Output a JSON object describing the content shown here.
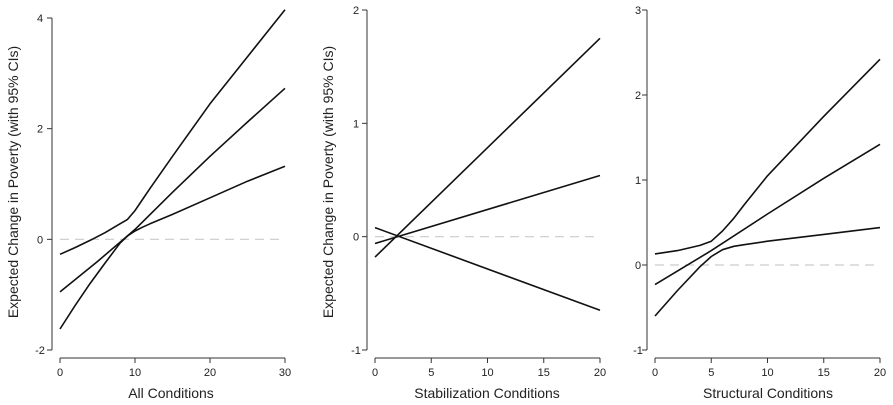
{
  "colors": {
    "line": "#111111",
    "reference": "#cccccc",
    "axis": "#333333"
  },
  "chart_data": [
    {
      "type": "line",
      "xlabel": "All Conditions",
      "ylabel": "Expected Change in Poverty (with 95% CIs)",
      "xlim": [
        0,
        30
      ],
      "ylim": [
        -2,
        4
      ],
      "xticks": [
        0,
        10,
        20,
        30
      ],
      "yticks": [
        -2,
        0,
        2,
        4
      ],
      "reference_y": 0,
      "series": [
        {
          "x": [
            0,
            2,
            4,
            6,
            8,
            9,
            10,
            11,
            12,
            15,
            20,
            25,
            30
          ],
          "y": [
            -0.27,
            -0.15,
            -0.02,
            0.12,
            0.28,
            0.36,
            0.52,
            0.72,
            0.92,
            1.5,
            2.45,
            3.3,
            4.15
          ]
        },
        {
          "x": [
            0,
            5,
            10,
            15,
            20,
            25,
            30
          ],
          "y": [
            -0.95,
            -0.4,
            0.18,
            0.85,
            1.5,
            2.12,
            2.73
          ]
        },
        {
          "x": [
            0,
            2,
            4,
            6,
            8,
            9,
            10,
            11,
            12,
            15,
            20,
            25,
            30
          ],
          "y": [
            -1.62,
            -1.2,
            -0.8,
            -0.43,
            -0.07,
            0.06,
            0.15,
            0.22,
            0.28,
            0.45,
            0.75,
            1.05,
            1.32
          ]
        }
      ]
    },
    {
      "type": "line",
      "xlabel": "Stabilization Conditions",
      "ylabel": "Expected Change in Poverty (with 95% CIs)",
      "xlim": [
        0,
        20
      ],
      "ylim": [
        -1,
        2
      ],
      "xticks": [
        0,
        5,
        10,
        15,
        20
      ],
      "yticks": [
        -1,
        0,
        1,
        2
      ],
      "reference_y": 0,
      "series": [
        {
          "x": [
            0,
            20
          ],
          "y": [
            -0.18,
            1.75
          ]
        },
        {
          "x": [
            0,
            20
          ],
          "y": [
            -0.06,
            0.54
          ]
        },
        {
          "x": [
            0,
            20
          ],
          "y": [
            0.08,
            -0.65
          ]
        }
      ]
    },
    {
      "type": "line",
      "xlabel": "Structural Conditions",
      "ylabel": "",
      "xlim": [
        0,
        20
      ],
      "ylim": [
        -1,
        3
      ],
      "xticks": [
        0,
        5,
        10,
        15,
        20
      ],
      "yticks": [
        -1,
        0,
        1,
        2,
        3
      ],
      "reference_y": 0,
      "series": [
        {
          "x": [
            0,
            2,
            4,
            5,
            6,
            7,
            8,
            10,
            15,
            20
          ],
          "y": [
            0.13,
            0.17,
            0.23,
            0.28,
            0.4,
            0.55,
            0.72,
            1.05,
            1.75,
            2.42
          ]
        },
        {
          "x": [
            0,
            5,
            10,
            15,
            20
          ],
          "y": [
            -0.23,
            0.17,
            0.6,
            1.02,
            1.42
          ]
        },
        {
          "x": [
            0,
            2,
            4,
            5,
            6,
            7,
            8,
            10,
            15,
            20
          ],
          "y": [
            -0.6,
            -0.3,
            -0.02,
            0.1,
            0.18,
            0.22,
            0.24,
            0.28,
            0.36,
            0.44
          ]
        }
      ]
    }
  ]
}
